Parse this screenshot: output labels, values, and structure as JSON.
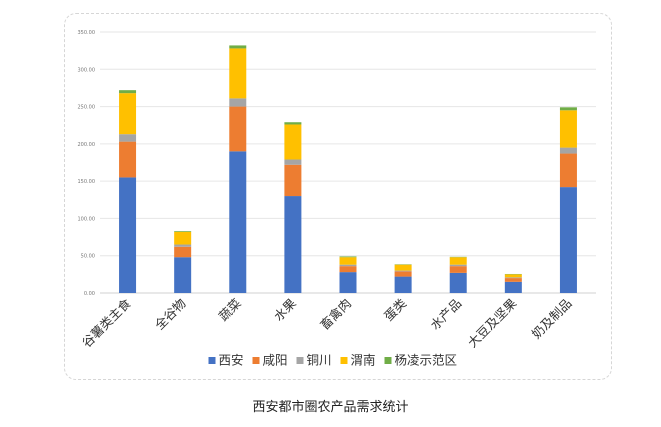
{
  "chart_data": {
    "type": "bar",
    "stacked": true,
    "categories": [
      "谷薯类主食",
      "全谷物",
      "蔬菜",
      "水果",
      "畜禽肉",
      "蛋类",
      "水产品",
      "大豆及坚果",
      "奶及制品"
    ],
    "series": [
      {
        "name": "西安",
        "color": "#4472c4",
        "values": [
          155,
          48,
          190,
          130,
          28,
          22,
          27,
          15,
          142
        ]
      },
      {
        "name": "咸阳",
        "color": "#ed7d31",
        "values": [
          48,
          14,
          60,
          42,
          8,
          7,
          9,
          5,
          45
        ]
      },
      {
        "name": "铜川",
        "color": "#a5a5a5",
        "values": [
          10,
          3,
          11,
          7,
          2,
          1,
          2,
          1,
          8
        ]
      },
      {
        "name": "渭南",
        "color": "#ffc000",
        "values": [
          55,
          17,
          67,
          47,
          10,
          8,
          10,
          4,
          50
        ]
      },
      {
        "name": "杨凌示范区",
        "color": "#70ad47",
        "values": [
          4,
          1,
          4,
          3,
          1,
          0.5,
          0.5,
          0.5,
          4
        ]
      }
    ],
    "yticks": [
      "0.00",
      "50.00",
      "100.00",
      "150.00",
      "200.00",
      "250.00",
      "300.00",
      "350.00"
    ],
    "ylim": [
      0,
      350
    ],
    "legend_position": "bottom",
    "grid": true
  },
  "caption": "西安都市圈农产品需求统计"
}
